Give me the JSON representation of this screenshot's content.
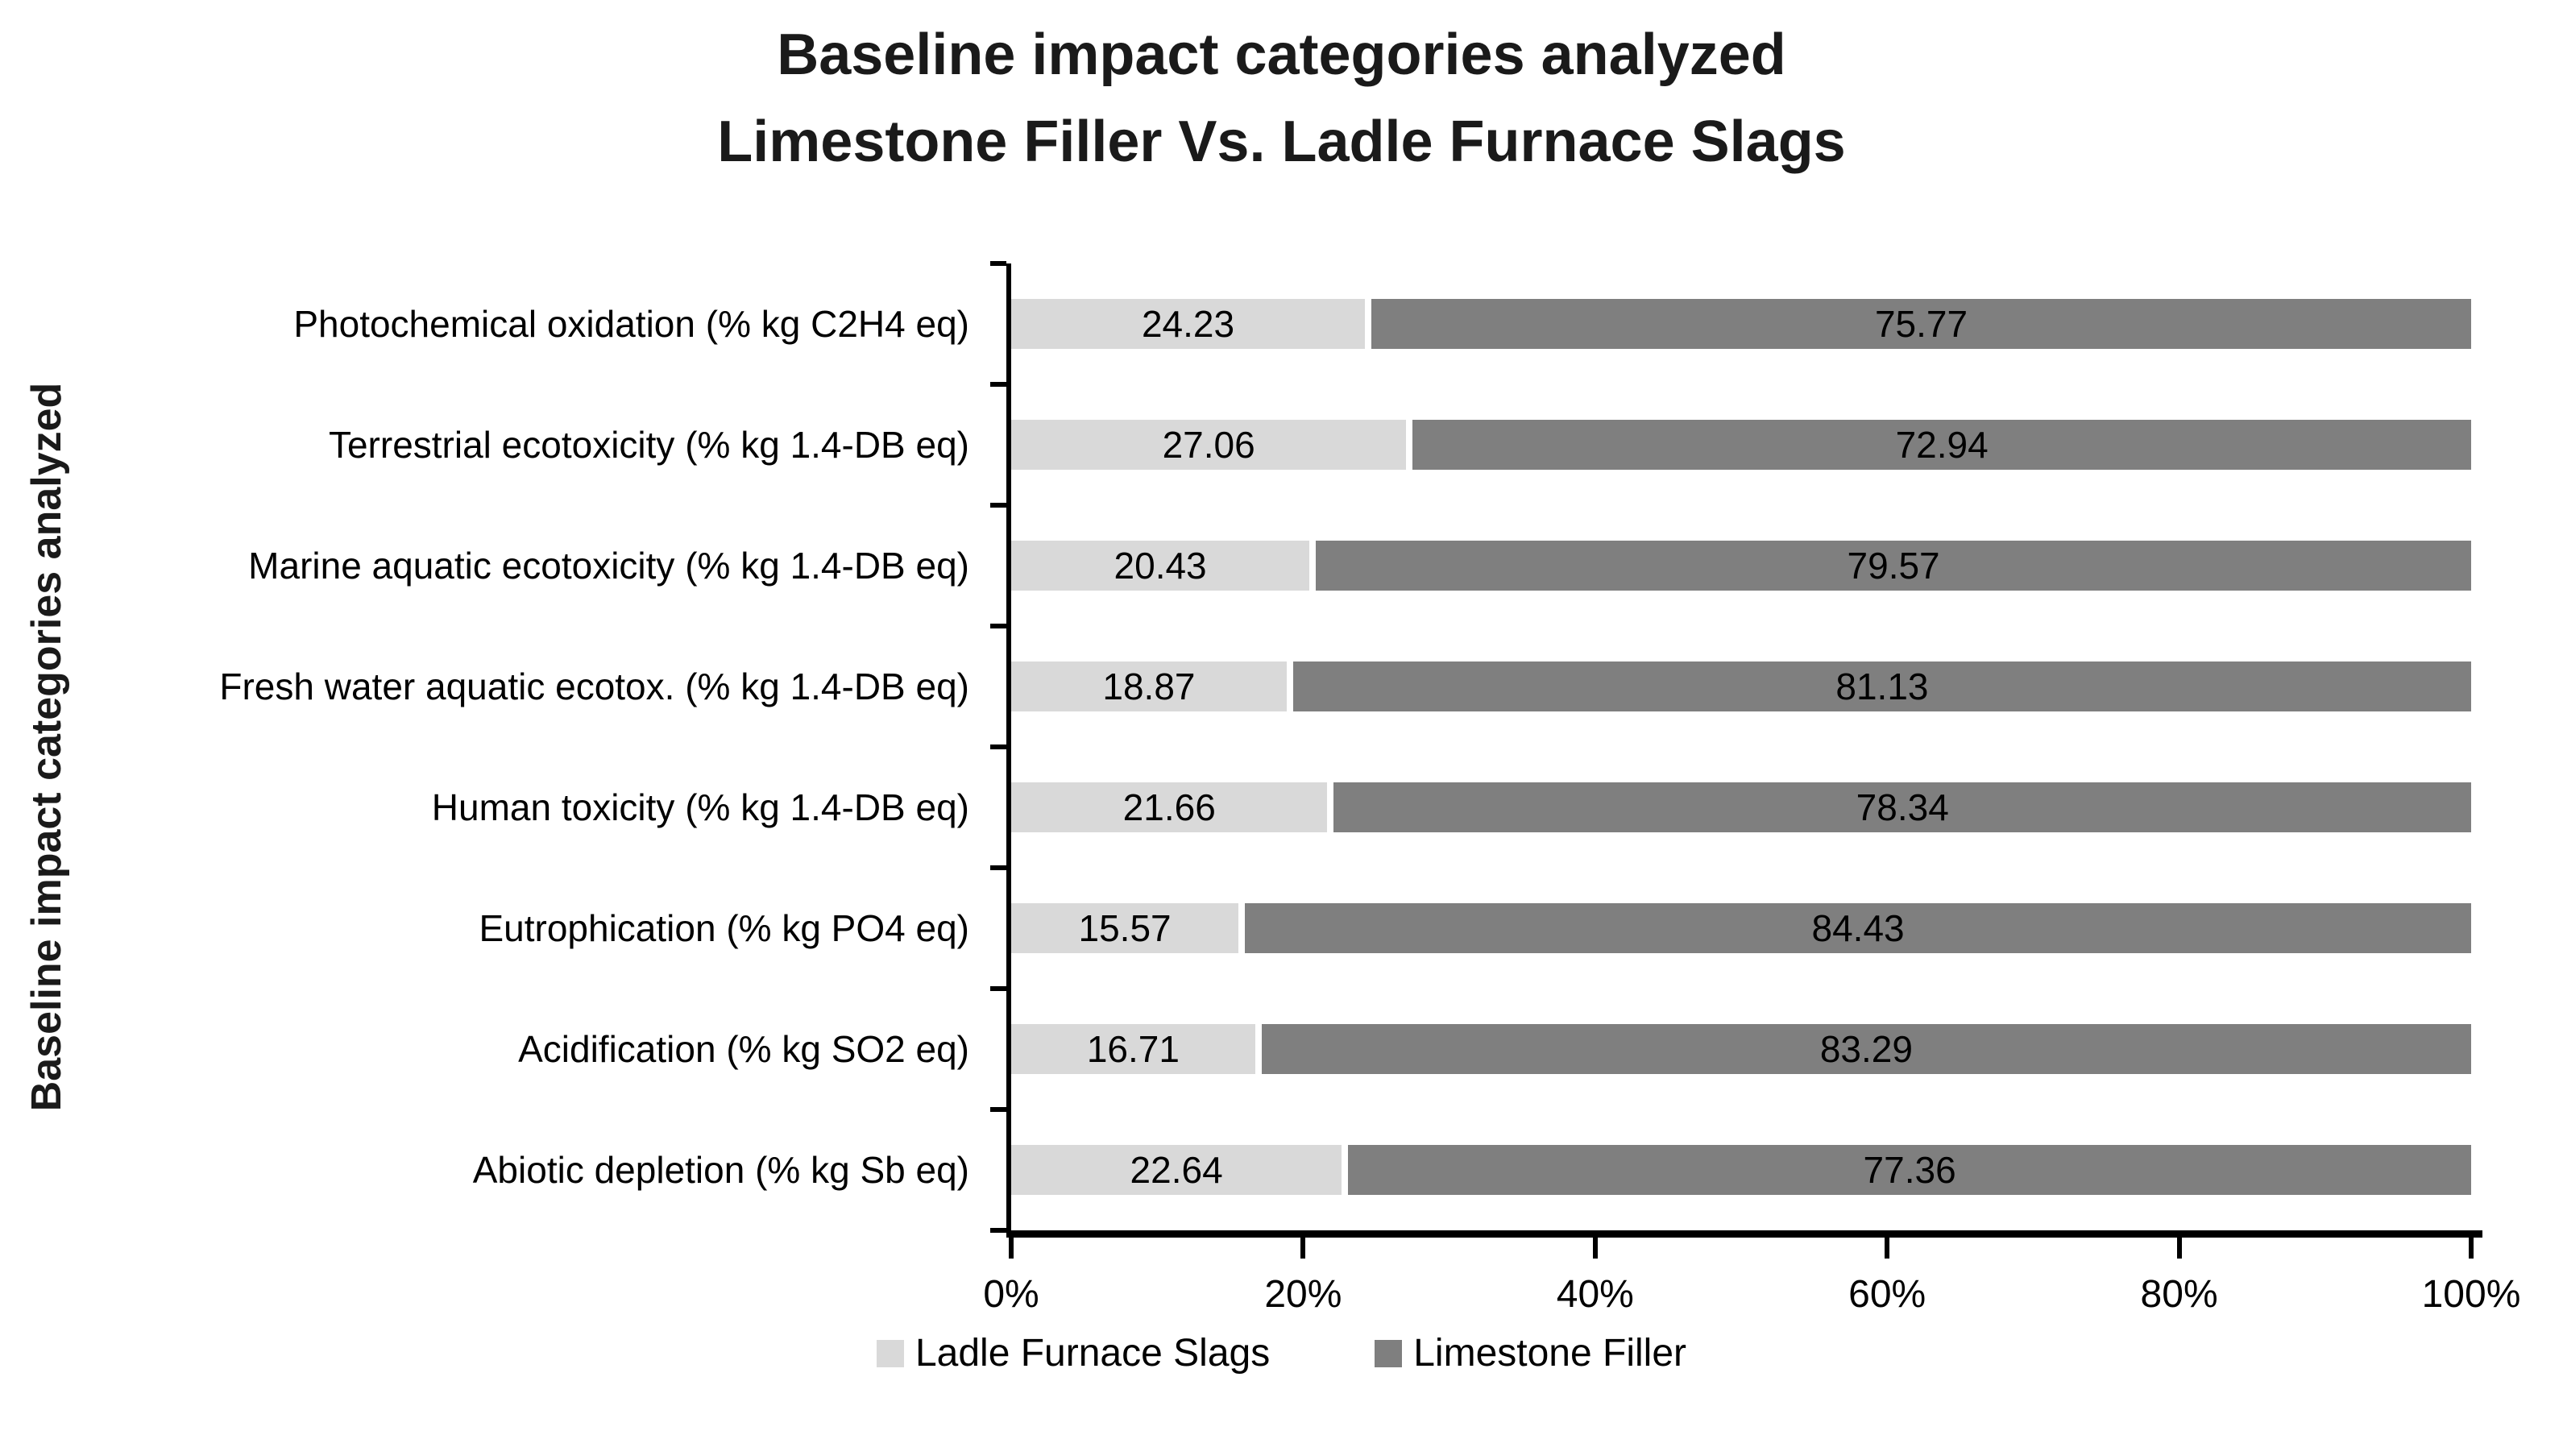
{
  "title": {
    "line1": "Baseline impact categories analyzed",
    "line2": "Limestone Filler Vs. Ladle Furnace Slags"
  },
  "y_axis_title": "Baseline impact categories analyzed",
  "legend": [
    {
      "label": "Ladle Furnace Slags",
      "color": "#d9d9d9"
    },
    {
      "label": "Limestone Filler",
      "color": "#7f7f7f"
    }
  ],
  "x_axis": {
    "ticks": [
      "0%",
      "20%",
      "40%",
      "60%",
      "80%",
      "100%"
    ],
    "min": 0,
    "max": 100
  },
  "colors": {
    "light_series": "#d9d9d9",
    "dark_series": "#7f7f7f",
    "axis": "#000000",
    "text": "#000000"
  },
  "chart_data": {
    "type": "bar",
    "orientation": "horizontal",
    "stacked": true,
    "title": "Baseline impact categories analyzed — Limestone Filler Vs. Ladle Furnace Slags",
    "xlabel": "",
    "ylabel": "Baseline impact categories analyzed",
    "xlim": [
      0,
      100
    ],
    "x_tick_labels": [
      "0%",
      "20%",
      "40%",
      "60%",
      "80%",
      "100%"
    ],
    "grid": false,
    "legend_position": "bottom",
    "categories": [
      "Photochemical oxidation (% kg C2H4 eq)",
      "Terrestrial ecotoxicity (% kg 1.4-DB eq)",
      "Marine aquatic ecotoxicity (% kg 1.4-DB eq)",
      "Fresh water aquatic ecotox. (% kg 1.4-DB eq)",
      "Human toxicity (% kg 1.4-DB eq)",
      "Eutrophication (% kg PO4 eq)",
      "Acidification (% kg SO2 eq)",
      "Abiotic depletion (% kg Sb eq)"
    ],
    "series": [
      {
        "name": "Ladle Furnace Slags",
        "color": "#d9d9d9",
        "values": [
          24.23,
          27.06,
          20.43,
          18.87,
          21.66,
          15.57,
          16.71,
          22.64
        ]
      },
      {
        "name": "Limestone Filler",
        "color": "#7f7f7f",
        "values": [
          75.77,
          72.94,
          79.57,
          81.13,
          78.34,
          84.43,
          83.29,
          77.36
        ]
      }
    ]
  }
}
